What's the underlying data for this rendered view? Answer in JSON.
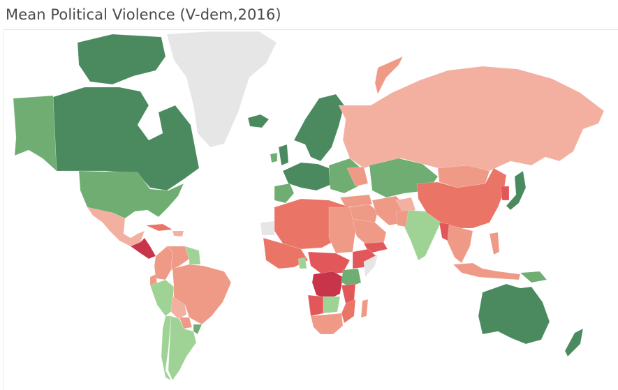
{
  "title": "Mean Political Violence (V-dem,2016)",
  "colors": {
    "dark_green": "#4b8a5f",
    "mid_green": "#6fad72",
    "light_green": "#9fd395",
    "pale_salmon": "#f3b0a0",
    "salmon": "#ef9a86",
    "orange_red": "#ea7466",
    "red": "#e2585a",
    "crimson": "#c8344a",
    "no_data": "#e6e6e6"
  },
  "countries": [
    {
      "name": "Greenland",
      "level": "no_data"
    },
    {
      "name": "Canada",
      "level": "dark_green"
    },
    {
      "name": "Alaska (USA)",
      "level": "mid_green"
    },
    {
      "name": "United States",
      "level": "mid_green"
    },
    {
      "name": "Mexico",
      "level": "pale_salmon"
    },
    {
      "name": "Central America",
      "level": "crimson"
    },
    {
      "name": "Cuba",
      "level": "orange_red"
    },
    {
      "name": "Colombia",
      "level": "salmon"
    },
    {
      "name": "Venezuela",
      "level": "salmon"
    },
    {
      "name": "Guyana",
      "level": "light_green"
    },
    {
      "name": "Brazil",
      "level": "salmon"
    },
    {
      "name": "Peru",
      "level": "light_green"
    },
    {
      "name": "Bolivia",
      "level": "pale_salmon"
    },
    {
      "name": "Paraguay",
      "level": "salmon"
    },
    {
      "name": "Chile",
      "level": "light_green"
    },
    {
      "name": "Argentina",
      "level": "light_green"
    },
    {
      "name": "Uruguay",
      "level": "mid_green"
    },
    {
      "name": "Scandinavia",
      "level": "dark_green"
    },
    {
      "name": "Western Europe",
      "level": "dark_green"
    },
    {
      "name": "Eastern Europe",
      "level": "mid_green"
    },
    {
      "name": "Russia",
      "level": "pale_salmon"
    },
    {
      "name": "Kazakhstan",
      "level": "mid_green"
    },
    {
      "name": "China",
      "level": "orange_red"
    },
    {
      "name": "Mongolia",
      "level": "salmon"
    },
    {
      "name": "India",
      "level": "light_green"
    },
    {
      "name": "Middle East",
      "level": "salmon"
    },
    {
      "name": "Iran",
      "level": "salmon"
    },
    {
      "name": "Saudi Arabia",
      "level": "salmon"
    },
    {
      "name": "Yemen",
      "level": "red"
    },
    {
      "name": "North Africa",
      "level": "orange_red"
    },
    {
      "name": "West Africa",
      "level": "orange_red"
    },
    {
      "name": "DR Congo",
      "level": "crimson"
    },
    {
      "name": "East Africa",
      "level": "red"
    },
    {
      "name": "Southern Africa",
      "level": "salmon"
    },
    {
      "name": "Japan",
      "level": "dark_green"
    },
    {
      "name": "Korea",
      "level": "red"
    },
    {
      "name": "Southeast Asia",
      "level": "salmon"
    },
    {
      "name": "Indonesia",
      "level": "salmon"
    },
    {
      "name": "Australia",
      "level": "dark_green"
    },
    {
      "name": "New Zealand",
      "level": "dark_green"
    }
  ]
}
